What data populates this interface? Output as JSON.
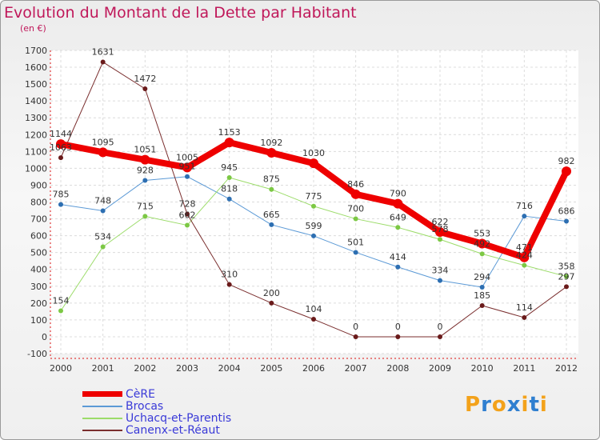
{
  "title": "Evolution du Montant de la Dette par Habitant",
  "unit": "(en €)",
  "brand": {
    "letters": [
      "P",
      "r",
      "o",
      "x",
      "i",
      "t",
      "i"
    ],
    "colors": [
      "#f3a21b",
      "#2f7fd0",
      "#f3a21b",
      "#2f7fd0",
      "#f3a21b",
      "#2f7fd0",
      "#f3a21b"
    ]
  },
  "chart_data": {
    "type": "line",
    "categories": [
      "2000",
      "2001",
      "2002",
      "2003",
      "2004",
      "2005",
      "2006",
      "2007",
      "2008",
      "2009",
      "2010",
      "2011",
      "2012"
    ],
    "ylim": [
      -100,
      1700
    ],
    "yticks": [
      "-100",
      "0",
      "100",
      "200",
      "300",
      "400",
      "500",
      "600",
      "700",
      "800",
      "900",
      "1000",
      "1100",
      "1200",
      "1300",
      "1400",
      "1500",
      "1600",
      "1700"
    ],
    "grid": true,
    "legend_position": "bottom-left",
    "series": [
      {
        "name": "CèRE",
        "color": "#ee0000",
        "marker": "#ee0000",
        "width": 8,
        "values": [
          1144,
          1095,
          1051,
          1005,
          1153,
          1092,
          1030,
          846,
          790,
          622,
          553,
          471,
          982
        ],
        "labels": [
          "1144",
          "1095",
          "1051",
          "1005",
          "1153",
          "1092",
          "1030",
          "846",
          "790",
          "622",
          "553",
          "471",
          "982"
        ]
      },
      {
        "name": "Brocas",
        "color": "#5c9ad6",
        "marker": "#2d6fb2",
        "width": 1,
        "values": [
          785,
          748,
          928,
          951,
          818,
          665,
          599,
          501,
          414,
          334,
          294,
          716,
          686
        ],
        "labels": [
          "785",
          "748",
          "928",
          "951",
          "818",
          "665",
          "599",
          "501",
          "414",
          "334",
          "294",
          "716",
          "686"
        ]
      },
      {
        "name": "Uchacq-et-Parentis",
        "color": "#9cdc6a",
        "marker": "#7cc844",
        "width": 1,
        "values": [
          154,
          534,
          715,
          662,
          945,
          875,
          775,
          700,
          649,
          578,
          492,
          424,
          358
        ],
        "labels": [
          "154",
          "534",
          "715",
          "662",
          "945",
          "875",
          "775",
          "700",
          "649",
          "578",
          "492",
          "424",
          "358"
        ]
      },
      {
        "name": "Canenx-et-Réaut",
        "color": "#7a2e2e",
        "marker": "#6a1a1a",
        "width": 1,
        "values": [
          1063,
          1631,
          1472,
          728,
          310,
          200,
          104,
          0,
          0,
          0,
          185,
          114,
          297
        ],
        "labels": [
          "1063",
          "1631",
          "1472",
          "728",
          "310",
          "200",
          "104",
          "0",
          "0",
          "0",
          "185",
          "114",
          "297"
        ]
      }
    ]
  }
}
